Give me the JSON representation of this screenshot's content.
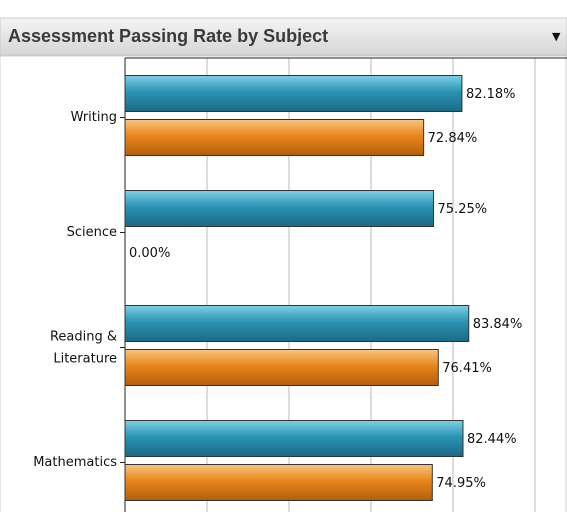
{
  "title": "Assessment Passing Rate by Subject",
  "chart_data": {
    "type": "hbar",
    "categories": [
      "Writing",
      "Science",
      "Reading & Literature",
      "Mathematics"
    ],
    "series": [
      {
        "color": "#2b93b3",
        "values": [
          82.18,
          75.25,
          83.84,
          82.44
        ],
        "value_labels": [
          "82.18%",
          "75.25%",
          "83.84%",
          "82.44%"
        ]
      },
      {
        "color": "#e8861c",
        "values": [
          72.84,
          0.0,
          76.41,
          74.95
        ],
        "value_labels": [
          "72.84%",
          "0.00%",
          "76.41%",
          "74.95%"
        ]
      }
    ],
    "xlim": [
      0,
      100
    ],
    "xticks": [
      0,
      20,
      40,
      60,
      80,
      100
    ],
    "grid": true
  }
}
